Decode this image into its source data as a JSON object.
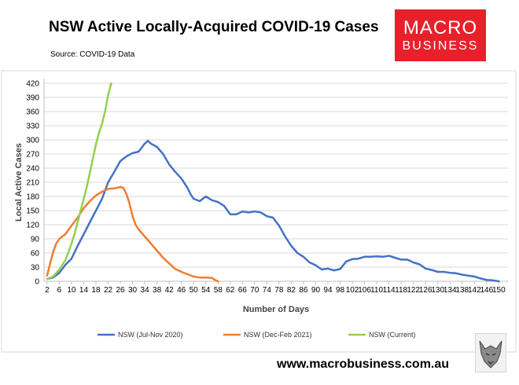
{
  "header": {
    "title": "NSW Active Locally-Acquired COVID-19 Cases",
    "source": "Source: COVID-19 Data"
  },
  "logo": {
    "line1": "MACRO",
    "line2": "BUSINESS",
    "color": "#e8202a"
  },
  "footer": {
    "website": "www.macrobusiness.com.au"
  },
  "chart_data": {
    "type": "line",
    "xlabel": "Number of Days",
    "ylabel": "Local Active Cases",
    "xlim": [
      1,
      153
    ],
    "ylim": [
      0,
      420
    ],
    "x_ticks": [
      2,
      6,
      10,
      14,
      18,
      22,
      26,
      30,
      34,
      38,
      42,
      46,
      50,
      54,
      58,
      62,
      66,
      70,
      74,
      78,
      82,
      86,
      90,
      94,
      98,
      102,
      106,
      110,
      114,
      118,
      122,
      126,
      130,
      134,
      138,
      142,
      146,
      150
    ],
    "y_ticks": [
      0,
      30,
      60,
      90,
      120,
      150,
      180,
      210,
      240,
      270,
      300,
      330,
      360,
      390,
      420
    ],
    "grid": "horizontal",
    "legend": "bottom",
    "series": [
      {
        "name": "NSW (Jul-Nov 2020)",
        "color": "#4472c4",
        "points": [
          [
            2,
            5
          ],
          [
            4,
            8
          ],
          [
            6,
            18
          ],
          [
            8,
            35
          ],
          [
            10,
            48
          ],
          [
            12,
            75
          ],
          [
            14,
            100
          ],
          [
            16,
            125
          ],
          [
            18,
            150
          ],
          [
            20,
            175
          ],
          [
            22,
            210
          ],
          [
            24,
            232
          ],
          [
            26,
            255
          ],
          [
            28,
            265
          ],
          [
            30,
            272
          ],
          [
            32,
            275
          ],
          [
            34,
            292
          ],
          [
            35,
            298
          ],
          [
            36,
            292
          ],
          [
            38,
            285
          ],
          [
            40,
            270
          ],
          [
            42,
            248
          ],
          [
            44,
            232
          ],
          [
            46,
            218
          ],
          [
            48,
            198
          ],
          [
            49,
            185
          ],
          [
            50,
            175
          ],
          [
            52,
            170
          ],
          [
            54,
            180
          ],
          [
            56,
            172
          ],
          [
            58,
            168
          ],
          [
            60,
            160
          ],
          [
            62,
            142
          ],
          [
            64,
            142
          ],
          [
            66,
            148
          ],
          [
            68,
            146
          ],
          [
            70,
            148
          ],
          [
            72,
            146
          ],
          [
            74,
            138
          ],
          [
            76,
            135
          ],
          [
            78,
            118
          ],
          [
            80,
            95
          ],
          [
            82,
            75
          ],
          [
            84,
            60
          ],
          [
            86,
            52
          ],
          [
            88,
            40
          ],
          [
            90,
            34
          ],
          [
            92,
            25
          ],
          [
            94,
            27
          ],
          [
            96,
            23
          ],
          [
            98,
            26
          ],
          [
            100,
            42
          ],
          [
            102,
            47
          ],
          [
            104,
            48
          ],
          [
            106,
            52
          ],
          [
            108,
            52
          ],
          [
            110,
            53
          ],
          [
            112,
            52
          ],
          [
            114,
            54
          ],
          [
            116,
            50
          ],
          [
            118,
            46
          ],
          [
            120,
            46
          ],
          [
            122,
            40
          ],
          [
            124,
            36
          ],
          [
            126,
            27
          ],
          [
            128,
            24
          ],
          [
            130,
            20
          ],
          [
            132,
            20
          ],
          [
            134,
            18
          ],
          [
            136,
            17
          ],
          [
            138,
            14
          ],
          [
            140,
            12
          ],
          [
            142,
            10
          ],
          [
            144,
            6
          ],
          [
            146,
            3
          ],
          [
            148,
            2
          ],
          [
            150,
            0
          ]
        ]
      },
      {
        "name": "NSW (Dec-Feb 2021)",
        "color": "#ed7d31",
        "points": [
          [
            2,
            12
          ],
          [
            3,
            38
          ],
          [
            4,
            62
          ],
          [
            5,
            80
          ],
          [
            6,
            90
          ],
          [
            8,
            100
          ],
          [
            10,
            118
          ],
          [
            12,
            135
          ],
          [
            14,
            155
          ],
          [
            16,
            170
          ],
          [
            18,
            182
          ],
          [
            20,
            190
          ],
          [
            22,
            196
          ],
          [
            24,
            197
          ],
          [
            26,
            200
          ],
          [
            27,
            198
          ],
          [
            28,
            185
          ],
          [
            29,
            165
          ],
          [
            30,
            138
          ],
          [
            31,
            120
          ],
          [
            32,
            110
          ],
          [
            34,
            95
          ],
          [
            36,
            80
          ],
          [
            38,
            65
          ],
          [
            40,
            50
          ],
          [
            42,
            38
          ],
          [
            44,
            26
          ],
          [
            46,
            20
          ],
          [
            48,
            15
          ],
          [
            50,
            10
          ],
          [
            52,
            8
          ],
          [
            54,
            8
          ],
          [
            56,
            7
          ],
          [
            57,
            3
          ],
          [
            58,
            0
          ]
        ]
      },
      {
        "name": "NSW (Current)",
        "color": "#92d050",
        "points": [
          [
            2,
            5
          ],
          [
            4,
            10
          ],
          [
            6,
            25
          ],
          [
            8,
            45
          ],
          [
            9,
            62
          ],
          [
            10,
            80
          ],
          [
            11,
            100
          ],
          [
            12,
            125
          ],
          [
            13,
            150
          ],
          [
            14,
            175
          ],
          [
            15,
            200
          ],
          [
            16,
            230
          ],
          [
            17,
            260
          ],
          [
            18,
            290
          ],
          [
            19,
            315
          ],
          [
            20,
            335
          ],
          [
            21,
            360
          ],
          [
            22,
            395
          ],
          [
            23,
            420
          ]
        ]
      }
    ]
  }
}
